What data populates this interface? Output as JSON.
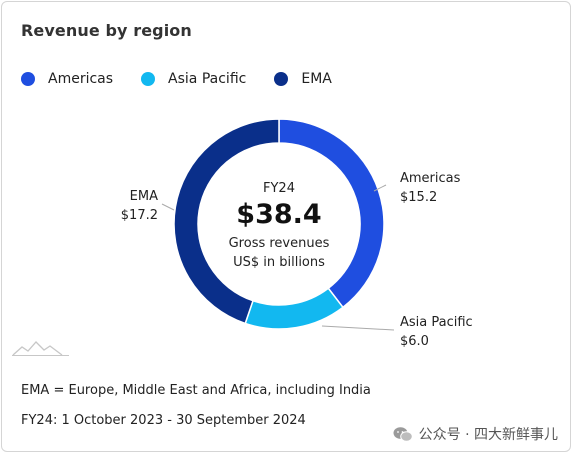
{
  "chart_data": {
    "type": "pie",
    "title": "Revenue by region",
    "categories": [
      "Americas",
      "Asia Pacific",
      "EMA"
    ],
    "values": [
      15.2,
      6.0,
      17.2
    ],
    "value_labels": [
      "$15.2",
      "$6.0",
      "$17.2"
    ],
    "colors": [
      "#1f4ee0",
      "#12b8f0",
      "#0a2f8a"
    ],
    "center": {
      "year": "FY24",
      "total": "$38.4",
      "line1": "Gross revenues",
      "line2": "US$ in billions"
    },
    "legend_position": "top-left"
  },
  "footnotes": [
    "EMA = Europe, Middle East and Africa, including India",
    "FY24: 1 October 2023 - 30 September 2024"
  ],
  "watermark": {
    "text": "公众号 · 四大新鲜事儿",
    "icon": "wechat-icon"
  },
  "logo_icon": "mountain-logo-icon"
}
